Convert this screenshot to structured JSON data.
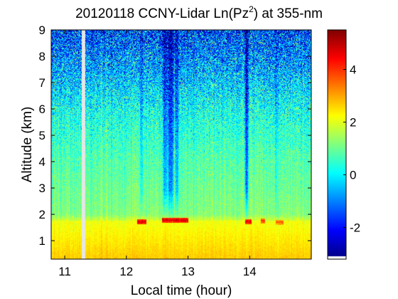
{
  "chart_data": {
    "type": "heatmap",
    "title": {
      "prefix": "20120118 CCNY-Lidar Ln(Pz",
      "superscript": "2",
      "suffix": ") at 355-nm"
    },
    "xlabel": "Local time (hour)",
    "ylabel": "Altitude (km)",
    "xlim": [
      10.78,
      15.0
    ],
    "ylim": [
      0.3,
      9.0
    ],
    "xticks": [
      11,
      12,
      13,
      14
    ],
    "xtick_labels": [
      "11",
      "12",
      "13",
      "14"
    ],
    "yticks": [
      1,
      2,
      3,
      4,
      5,
      6,
      7,
      8,
      9
    ],
    "ytick_labels": [
      "1",
      "2",
      "3",
      "4",
      "5",
      "6",
      "7",
      "8",
      "9"
    ],
    "colorbar": {
      "colormap": "jet",
      "clim": [
        -3.2,
        5.5
      ],
      "ticks": [
        -2,
        0,
        2,
        4
      ],
      "tick_labels": [
        "-2",
        "0",
        "2",
        "4"
      ]
    },
    "data_gaps": [
      {
        "time_start": 11.28,
        "time_end": 11.33,
        "fill_color": "#e6e6e6"
      }
    ],
    "surface_layer": {
      "top_km": 1.75,
      "value_near_ground": 2.7,
      "value_at_top": 2.1
    },
    "cloud_layer_events": [
      {
        "time_start": 12.18,
        "time_end": 12.32,
        "altitude_km": 1.72,
        "value": 4.6
      },
      {
        "time_start": 12.58,
        "time_end": 13.0,
        "altitude_km": 1.78,
        "value": 4.7
      },
      {
        "time_start": 13.93,
        "time_end": 14.03,
        "altitude_km": 1.72,
        "value": 4.6
      },
      {
        "time_start": 14.18,
        "time_end": 14.25,
        "altitude_km": 1.75,
        "value": 4.0
      },
      {
        "time_start": 14.42,
        "time_end": 14.55,
        "altitude_km": 1.7,
        "value": 3.6
      }
    ],
    "low_signal_columns": [
      {
        "time": 12.25,
        "width_hr": 0.03,
        "depth": 1.1
      },
      {
        "time": 12.63,
        "width_hr": 0.05,
        "depth": 2.2
      },
      {
        "time": 12.72,
        "width_hr": 0.06,
        "depth": 2.6
      },
      {
        "time": 12.82,
        "width_hr": 0.04,
        "depth": 1.8
      },
      {
        "time": 13.95,
        "width_hr": 0.04,
        "depth": 2.4
      },
      {
        "time": 14.43,
        "width_hr": 0.02,
        "depth": 0.8
      }
    ],
    "background_profile": {
      "altitude_km": [
        0.3,
        1.75,
        2.0,
        3.0,
        4.0,
        5.0,
        6.0,
        7.0,
        8.0,
        9.0
      ],
      "value": [
        2.5,
        1.9,
        1.2,
        1.0,
        0.8,
        0.5,
        0.2,
        -0.3,
        -0.9,
        -1.6
      ],
      "noise_std": [
        0.1,
        0.15,
        0.2,
        0.25,
        0.35,
        0.5,
        0.7,
        0.95,
        1.2,
        1.45
      ]
    }
  }
}
